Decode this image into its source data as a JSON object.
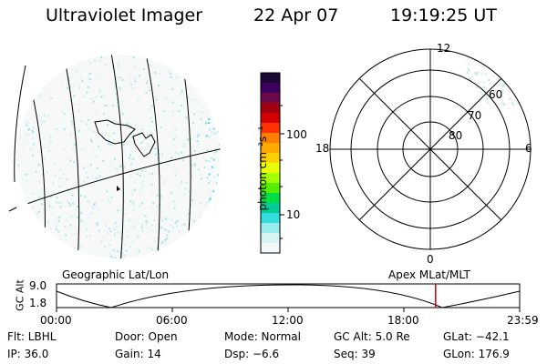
{
  "header": {
    "title": "Ultraviolet Imager",
    "date": "22 Apr 07",
    "time": "19:19:25 UT"
  },
  "geo_panel": {
    "label": "Geographic Lat/Lon"
  },
  "colorbar": {
    "unit_label": "photon cm⁻²s⁻¹",
    "ticks": [
      "100",
      "10"
    ],
    "colors": [
      "#1a0a33",
      "#3b0060",
      "#6d0a4a",
      "#a00010",
      "#d40000",
      "#ff3300",
      "#ff8000",
      "#ffaa00",
      "#ffd000",
      "#e8ff00",
      "#a6ff00",
      "#55ee00",
      "#00dd44",
      "#00cc99",
      "#33dddd",
      "#99ecec",
      "#d6f4f4",
      "#f2f8f8"
    ]
  },
  "polar_panel": {
    "label": "Apex MLat/MLT",
    "mlt_labels": {
      "top": "12",
      "left": "18",
      "right": "6",
      "bottom": "0"
    },
    "mlat_labels": [
      "60",
      "70",
      "80"
    ]
  },
  "timeline": {
    "y_axis_label": "GC Alt",
    "alt_max": "9.0",
    "alt_min": "1.8",
    "ticks": [
      "00:00",
      "06:00",
      "12:00",
      "18:00",
      "23:59"
    ],
    "current_time_fraction": 0.8185,
    "marker_color": "#cc0000"
  },
  "info": {
    "filter": "Flt: LBHL",
    "door": "Door: Open",
    "mode": "Mode: Normal",
    "gc_alt": "GC Alt: 5.0 Re",
    "glat": "GLat: −42.1",
    "ip": "IP: 36.0",
    "gain": "Gain: 14",
    "dsp": "Dsp:    −6.6",
    "seq": "Seq: 39",
    "glon": "GLon: 176.9"
  }
}
